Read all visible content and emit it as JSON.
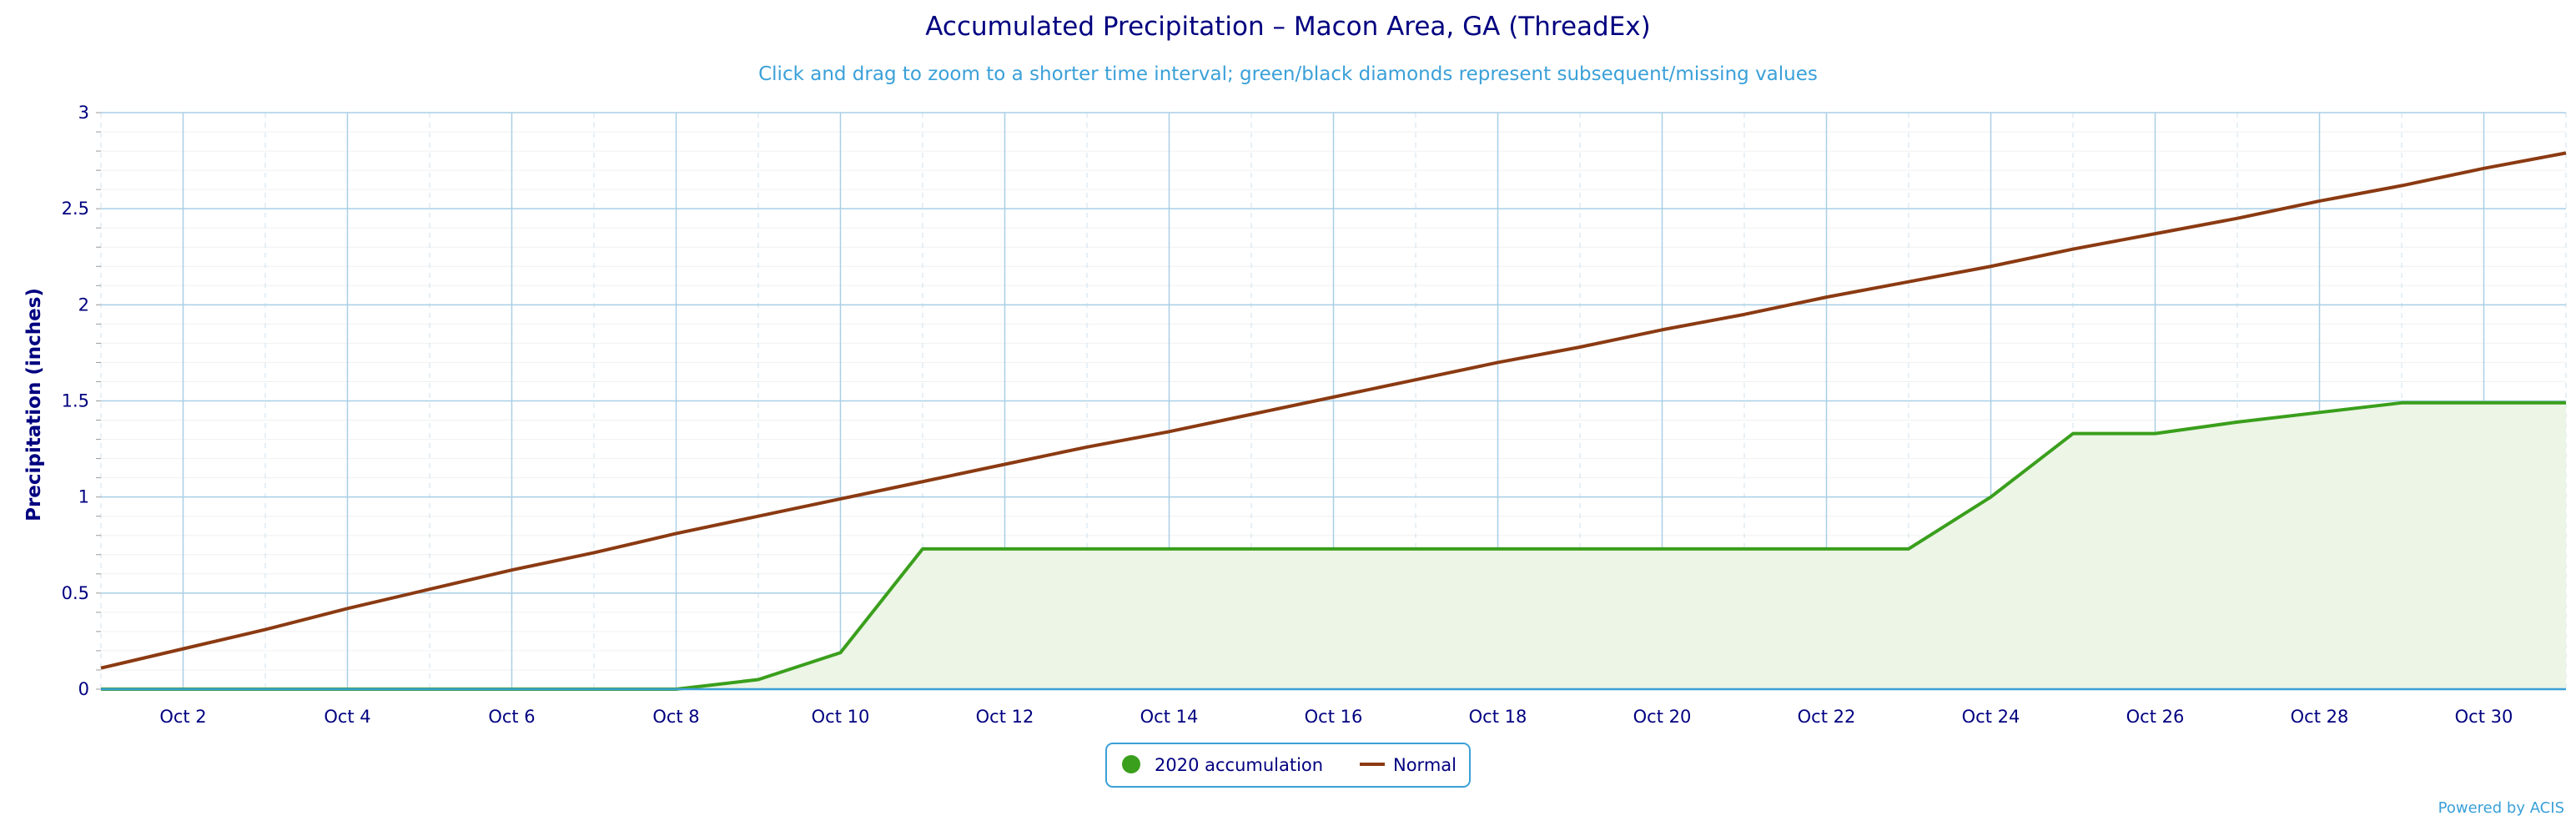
{
  "chart_data": {
    "type": "line",
    "title": "Accumulated Precipitation – Macon Area, GA (ThreadEx)",
    "subtitle": "Click and drag to zoom to a shorter time interval; green/black diamonds represent subsequent/missing values",
    "ylabel": "Precipitation (inches)",
    "xlabel": "",
    "ylim": [
      0,
      3
    ],
    "yticks": [
      0,
      0.5,
      1,
      1.5,
      2,
      2.5,
      3
    ],
    "yticklabels": [
      "0",
      "0.5",
      "1",
      "1.5",
      "2",
      "2.5",
      "3"
    ],
    "xlim": [
      1,
      31
    ],
    "xticks": [
      2,
      4,
      6,
      8,
      10,
      12,
      14,
      16,
      18,
      20,
      22,
      24,
      26,
      28,
      30
    ],
    "xticklabels": [
      "Oct 2",
      "Oct 4",
      "Oct 6",
      "Oct 8",
      "Oct 10",
      "Oct 12",
      "Oct 14",
      "Oct 16",
      "Oct 18",
      "Oct 20",
      "Oct 22",
      "Oct 24",
      "Oct 26",
      "Oct 28",
      "Oct 30"
    ],
    "grid": true,
    "legend_position": "bottom-center",
    "series": [
      {
        "name": "2020 accumulation",
        "style": "area",
        "color": "#3a9f1c",
        "fill": "#ecf5e6",
        "x": [
          1,
          2,
          3,
          4,
          5,
          6,
          7,
          8,
          9,
          10,
          11,
          12,
          13,
          14,
          15,
          16,
          17,
          18,
          19,
          20,
          21,
          22,
          23,
          24,
          25,
          26,
          27,
          28,
          29,
          30,
          31
        ],
        "values": [
          0,
          0,
          0,
          0,
          0,
          0,
          0,
          0,
          0.05,
          0.19,
          0.73,
          0.73,
          0.73,
          0.73,
          0.73,
          0.73,
          0.73,
          0.73,
          0.73,
          0.73,
          0.73,
          0.73,
          0.73,
          1.0,
          1.33,
          1.33,
          1.39,
          1.44,
          1.49,
          1.49,
          1.49
        ]
      },
      {
        "name": "Normal",
        "style": "line",
        "color": "#8b3a12",
        "x": [
          1,
          2,
          3,
          4,
          5,
          6,
          7,
          8,
          9,
          10,
          11,
          12,
          13,
          14,
          15,
          16,
          17,
          18,
          19,
          20,
          21,
          22,
          23,
          24,
          25,
          26,
          27,
          28,
          29,
          30,
          31
        ],
        "values": [
          0.11,
          0.21,
          0.31,
          0.42,
          0.52,
          0.62,
          0.71,
          0.81,
          0.9,
          0.99,
          1.08,
          1.17,
          1.26,
          1.34,
          1.43,
          1.52,
          1.61,
          1.7,
          1.78,
          1.87,
          1.95,
          2.04,
          2.12,
          2.2,
          2.29,
          2.37,
          2.45,
          2.54,
          2.62,
          2.71,
          2.79
        ]
      }
    ]
  },
  "credits": "Powered by ACIS"
}
